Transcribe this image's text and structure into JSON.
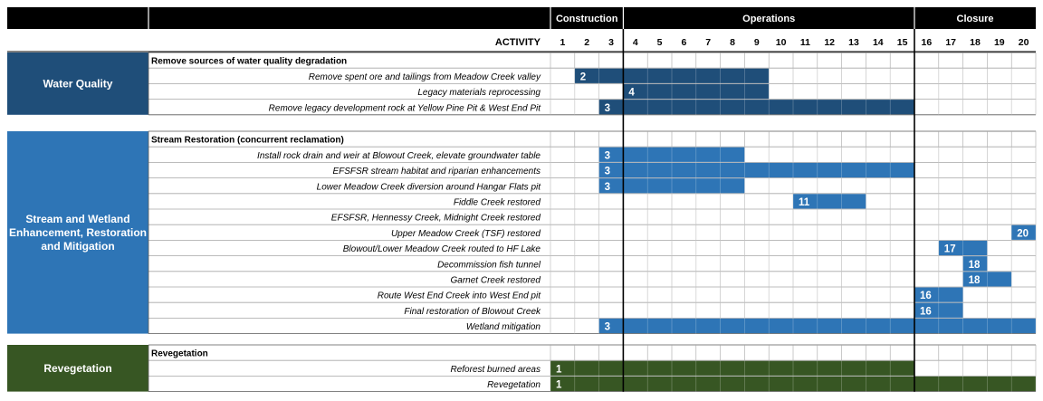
{
  "chart_data": {
    "type": "gantt",
    "x_unit": "year",
    "years": [
      1,
      2,
      3,
      4,
      5,
      6,
      7,
      8,
      9,
      10,
      11,
      12,
      13,
      14,
      15,
      16,
      17,
      18,
      19,
      20
    ],
    "activity_label": "ACTIVITY",
    "phases": [
      {
        "name": "Construction",
        "start": 1,
        "end": 3
      },
      {
        "name": "Operations",
        "start": 4,
        "end": 15
      },
      {
        "name": "Closure",
        "start": 16,
        "end": 20
      }
    ],
    "colors": {
      "header_band": "#000000",
      "water_quality": "#1f4e79",
      "stream": "#2e75b6",
      "revegetation": "#375623",
      "grid": "#a6a6a6"
    },
    "groups": [
      {
        "name": "Water Quality",
        "color": "#1f4e79",
        "sections": [
          {
            "title": "Remove sources of water quality degradation",
            "tasks": [
              {
                "label": "Remove spent ore and tailings from Meadow Creek valley",
                "start": 2,
                "end": 9
              },
              {
                "label": "Legacy materials reprocessing",
                "start": 4,
                "end": 9
              },
              {
                "label": "Remove legacy development rock at Yellow Pine Pit & West End Pit",
                "start": 3,
                "end": 15
              }
            ]
          }
        ]
      },
      {
        "name": "Stream and Wetland Enhancement, Restoration and Mitigation",
        "color": "#2e75b6",
        "sections": [
          {
            "title": "Stream Restoration (concurrent reclamation)",
            "tasks": [
              {
                "label": "Install rock drain and weir at Blowout Creek, elevate groundwater table",
                "start": 3,
                "end": 8
              },
              {
                "label": "EFSFSR stream habitat and riparian enhancements",
                "start": 3,
                "end": 15
              },
              {
                "label": "Lower Meadow Creek diversion around Hangar Flats pit",
                "start": 3,
                "end": 8
              },
              {
                "label": "Fiddle Creek restored",
                "start": 11,
                "end": 13
              },
              {
                "label": "EFSFSR, Hennessy Creek, Midnight Creek restored",
                "start": null,
                "end": null
              },
              {
                "label": "Upper Meadow Creek (TSF) restored",
                "start": 20,
                "end": 20
              },
              {
                "label": "Blowout/Lower Meadow Creek routed to HF Lake",
                "start": 17,
                "end": 18
              },
              {
                "label": "Decommission fish tunnel",
                "start": 18,
                "end": 18
              },
              {
                "label": "Garnet Creek restored",
                "start": 18,
                "end": 19
              },
              {
                "label": "Route West End Creek into West End pit",
                "start": 16,
                "end": 17
              },
              {
                "label": "Final restoration of Blowout Creek",
                "start": 16,
                "end": 17
              },
              {
                "label": "Wetland mitigation",
                "start": 3,
                "end": 20
              }
            ]
          }
        ]
      },
      {
        "name": "Revegetation",
        "color": "#375623",
        "sections": [
          {
            "title": "Revegetation",
            "tasks": [
              {
                "label": "Reforest burned areas",
                "start": 1,
                "end": 15
              },
              {
                "label": "Revegetation",
                "start": 1,
                "end": 20
              }
            ]
          }
        ]
      }
    ]
  }
}
